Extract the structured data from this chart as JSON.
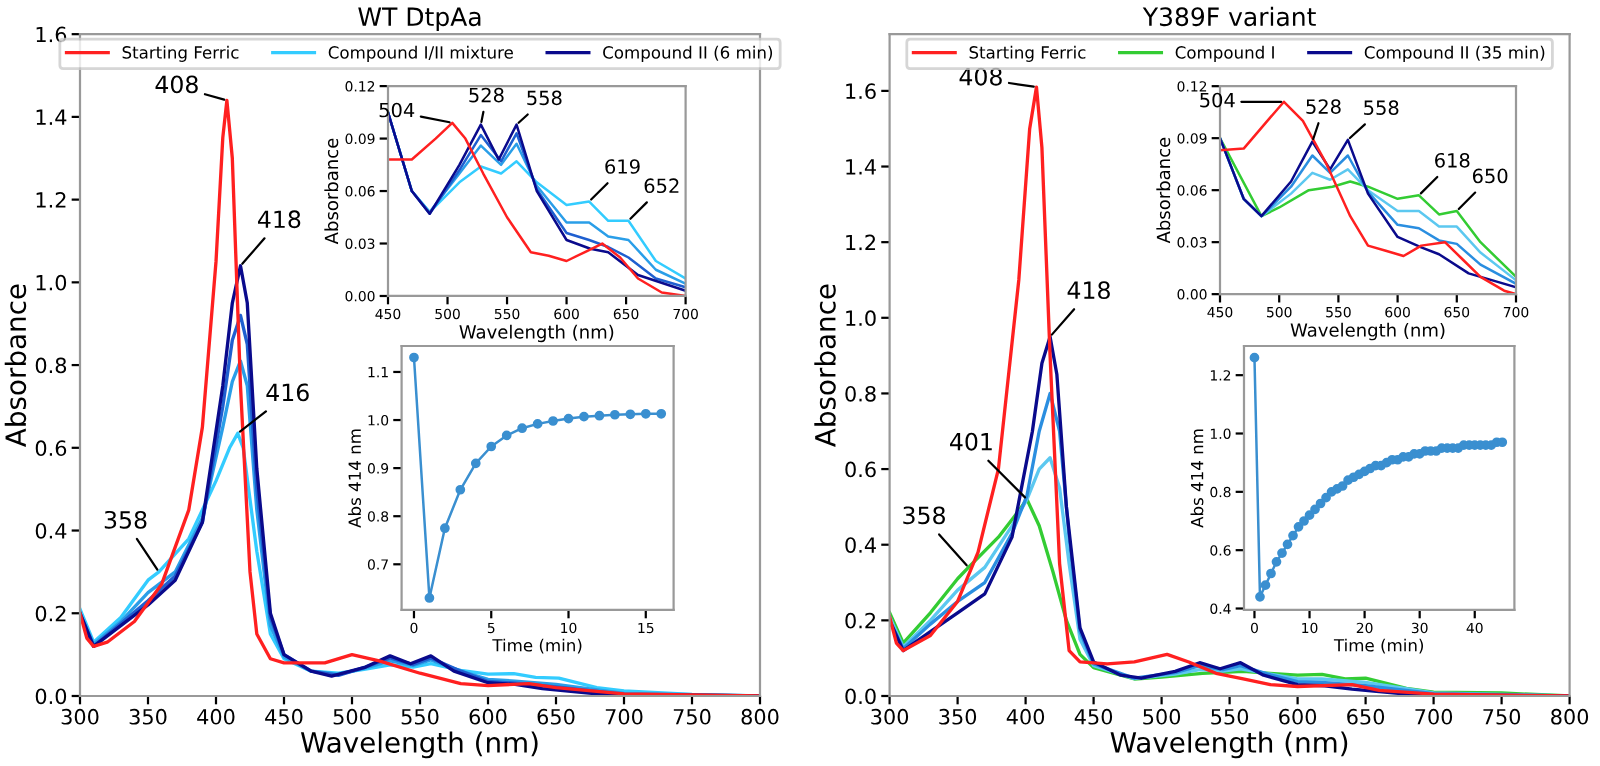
{
  "chart_data": [
    {
      "type": "line",
      "title": "WT DtpAa",
      "xlabel": "Wavelength (nm)",
      "ylabel": "Absorbance",
      "xlim": [
        300,
        800
      ],
      "ylim": [
        0,
        1.6
      ],
      "xticks": [
        300,
        350,
        400,
        450,
        500,
        550,
        600,
        650,
        700,
        750,
        800
      ],
      "yticks": [
        {
          "value": 0,
          "label": "0.0"
        },
        0.2,
        0.4,
        0.6,
        0.8,
        {
          "value": 1,
          "label": "1.0"
        },
        1.2,
        1.4,
        1.6
      ],
      "legend": "top",
      "grid": false,
      "series": [
        {
          "name": "Starting Ferric",
          "color": "#ff2020",
          "x": [
            300,
            305,
            310,
            320,
            340,
            360,
            380,
            390,
            400,
            405,
            408,
            412,
            418,
            425,
            430,
            440,
            450,
            480,
            500,
            520,
            550,
            580,
            600,
            630,
            650,
            700,
            800
          ],
          "values": [
            0.2,
            0.14,
            0.12,
            0.13,
            0.18,
            0.27,
            0.45,
            0.65,
            1.05,
            1.35,
            1.44,
            1.3,
            0.75,
            0.3,
            0.15,
            0.09,
            0.08,
            0.08,
            0.1,
            0.085,
            0.055,
            0.03,
            0.025,
            0.03,
            0.02,
            0.005,
            0
          ]
        },
        {
          "name": "Compound I/II mixture",
          "color": "#33ccff",
          "x": [
            300,
            310,
            330,
            350,
            358,
            380,
            400,
            410,
            416,
            420,
            430,
            440,
            450,
            470,
            490,
            510,
            528,
            545,
            558,
            580,
            600,
            619,
            635,
            652,
            680,
            700,
            750,
            800
          ],
          "values": [
            0.21,
            0.13,
            0.19,
            0.28,
            0.3,
            0.38,
            0.52,
            0.6,
            0.635,
            0.6,
            0.35,
            0.15,
            0.09,
            0.06,
            0.055,
            0.065,
            0.075,
            0.07,
            0.078,
            0.062,
            0.053,
            0.054,
            0.045,
            0.043,
            0.02,
            0.012,
            0.004,
            0
          ]
        },
        {
          "color": "#2a9ee8",
          "x": [
            300,
            310,
            330,
            350,
            370,
            390,
            405,
            412,
            418,
            423,
            430,
            440,
            450,
            470,
            490,
            510,
            528,
            545,
            558,
            580,
            600,
            620,
            650,
            700,
            800
          ],
          "values": [
            0.2,
            0.125,
            0.18,
            0.25,
            0.3,
            0.43,
            0.65,
            0.76,
            0.81,
            0.75,
            0.45,
            0.17,
            0.095,
            0.06,
            0.052,
            0.068,
            0.085,
            0.074,
            0.087,
            0.06,
            0.04,
            0.036,
            0.028,
            0.006,
            0
          ]
        },
        {
          "color": "#1f5fd0",
          "x": [
            300,
            310,
            330,
            350,
            370,
            390,
            405,
            412,
            418,
            423,
            430,
            440,
            450,
            470,
            490,
            510,
            528,
            545,
            558,
            580,
            600,
            620,
            650,
            700,
            800
          ],
          "values": [
            0.2,
            0.12,
            0.175,
            0.23,
            0.29,
            0.42,
            0.7,
            0.86,
            0.92,
            0.85,
            0.5,
            0.19,
            0.1,
            0.06,
            0.05,
            0.07,
            0.092,
            0.076,
            0.092,
            0.06,
            0.035,
            0.031,
            0.022,
            0.004,
            0
          ]
        },
        {
          "name": "Compound II (6 min)",
          "color": "#0a0a8c",
          "x": [
            300,
            310,
            330,
            350,
            370,
            390,
            405,
            412,
            418,
            423,
            430,
            440,
            450,
            470,
            485,
            510,
            528,
            543,
            558,
            575,
            600,
            620,
            640,
            680,
            700,
            800
          ],
          "values": [
            0.2,
            0.12,
            0.17,
            0.22,
            0.28,
            0.42,
            0.75,
            0.95,
            1.04,
            0.95,
            0.55,
            0.2,
            0.1,
            0.06,
            0.048,
            0.07,
            0.097,
            0.078,
            0.097,
            0.06,
            0.032,
            0.028,
            0.018,
            0.005,
            0.003,
            0
          ]
        }
      ],
      "annotations": [
        {
          "text": "408",
          "x": 408,
          "y": 1.44
        },
        {
          "text": "418",
          "x": 418,
          "y": 1.04
        },
        {
          "text": "416",
          "x": 416,
          "y": 0.635
        },
        {
          "text": "358",
          "x": 358,
          "y": 0.3
        }
      ]
    },
    {
      "type": "line",
      "xlabel": "Wavelength (nm)",
      "ylabel": "Absorbance",
      "xlim": [
        450,
        700
      ],
      "ylim": [
        0,
        0.12
      ],
      "xticks": [
        450,
        500,
        550,
        600,
        650,
        700
      ],
      "yticks": [
        {
          "value": 0,
          "label": "0.00"
        },
        {
          "value": 0.03,
          "label": "0.03"
        },
        {
          "value": 0.06,
          "label": "0.06"
        },
        {
          "value": 0.09,
          "label": "0.09"
        },
        {
          "value": 0.12,
          "label": "0.12"
        }
      ],
      "grid": false,
      "series": [
        {
          "color": "#ff2020",
          "x": [
            450,
            470,
            490,
            504,
            515,
            530,
            550,
            570,
            585,
            600,
            615,
            630,
            645,
            660,
            680,
            700
          ],
          "values": [
            0.078,
            0.078,
            0.09,
            0.099,
            0.09,
            0.07,
            0.045,
            0.025,
            0.023,
            0.02,
            0.025,
            0.03,
            0.022,
            0.01,
            0.002,
            0
          ]
        },
        {
          "color": "#33ccff",
          "x": [
            450,
            470,
            485,
            510,
            528,
            545,
            558,
            575,
            600,
            619,
            635,
            652,
            675,
            700
          ],
          "values": [
            0.105,
            0.06,
            0.048,
            0.065,
            0.074,
            0.07,
            0.077,
            0.065,
            0.052,
            0.054,
            0.043,
            0.043,
            0.02,
            0.01
          ]
        },
        {
          "color": "#2a9ee8",
          "x": [
            450,
            470,
            485,
            510,
            528,
            545,
            558,
            575,
            600,
            619,
            635,
            652,
            675,
            700
          ],
          "values": [
            0.105,
            0.06,
            0.048,
            0.07,
            0.086,
            0.075,
            0.087,
            0.063,
            0.042,
            0.042,
            0.034,
            0.032,
            0.015,
            0.007
          ]
        },
        {
          "color": "#1f5fd0",
          "x": [
            450,
            470,
            485,
            510,
            528,
            545,
            558,
            575,
            600,
            619,
            635,
            652,
            675,
            700
          ],
          "values": [
            0.105,
            0.06,
            0.047,
            0.072,
            0.092,
            0.077,
            0.093,
            0.061,
            0.036,
            0.032,
            0.028,
            0.022,
            0.01,
            0.005
          ]
        },
        {
          "color": "#0a0a8c",
          "x": [
            450,
            470,
            485,
            510,
            528,
            543,
            558,
            575,
            600,
            620,
            635,
            660,
            700
          ],
          "values": [
            0.105,
            0.06,
            0.047,
            0.075,
            0.098,
            0.078,
            0.098,
            0.06,
            0.032,
            0.027,
            0.025,
            0.012,
            0.003
          ]
        }
      ],
      "annotations": [
        {
          "text": "504",
          "x": 504,
          "y": 0.099
        },
        {
          "text": "528",
          "x": 528,
          "y": 0.098
        },
        {
          "text": "558",
          "x": 558,
          "y": 0.098
        },
        {
          "text": "619",
          "x": 619,
          "y": 0.054
        },
        {
          "text": "652",
          "x": 652,
          "y": 0.043
        }
      ]
    },
    {
      "type": "line",
      "xlabel": "Time (min)",
      "ylabel": "Abs 414 nm",
      "xlim": [
        -0.8,
        16.8
      ],
      "ylim": [
        0.605,
        1.154
      ],
      "xticks": [
        0,
        5,
        10,
        15
      ],
      "yticks": [
        0.7,
        0.8,
        0.9,
        {
          "value": 1,
          "label": "1.0"
        },
        1.1
      ],
      "grid": false,
      "marker": "circle",
      "series": [
        {
          "color": "#3a8fd0",
          "x": [
            0,
            1,
            2,
            3,
            4,
            5,
            6,
            7,
            8,
            9,
            10,
            11,
            12,
            13,
            14,
            15,
            16
          ],
          "values": [
            1.13,
            0.63,
            0.775,
            0.855,
            0.91,
            0.945,
            0.968,
            0.983,
            0.992,
            0.998,
            1.003,
            1.007,
            1.009,
            1.011,
            1.012,
            1.013,
            1.013
          ]
        }
      ]
    },
    {
      "type": "line",
      "title": "Y389F variant",
      "xlabel": "Wavelength (nm)",
      "ylabel": "Absorbance",
      "xlim": [
        300,
        800
      ],
      "ylim": [
        0,
        1.75
      ],
      "xticks": [
        300,
        350,
        400,
        450,
        500,
        550,
        600,
        650,
        700,
        750,
        800
      ],
      "yticks": [
        {
          "value": 0,
          "label": "0.0"
        },
        0.2,
        0.4,
        0.6,
        0.8,
        {
          "value": 1,
          "label": "1.0"
        },
        1.2,
        1.4,
        1.6
      ],
      "legend": "top",
      "grid": false,
      "series": [
        {
          "name": "Starting Ferric",
          "color": "#ff2020",
          "x": [
            300,
            305,
            310,
            330,
            350,
            365,
            380,
            395,
            403,
            408,
            412,
            418,
            425,
            432,
            440,
            460,
            480,
            504,
            520,
            540,
            560,
            580,
            600,
            640,
            660,
            700,
            800
          ],
          "values": [
            0.21,
            0.14,
            0.12,
            0.16,
            0.25,
            0.38,
            0.6,
            1.1,
            1.5,
            1.61,
            1.45,
            0.9,
            0.35,
            0.12,
            0.09,
            0.085,
            0.09,
            0.11,
            0.09,
            0.06,
            0.045,
            0.03,
            0.025,
            0.03,
            0.015,
            0.005,
            0
          ]
        },
        {
          "name": "Compound I",
          "color": "#33cc33",
          "x": [
            300,
            310,
            330,
            350,
            358,
            380,
            395,
            401,
            410,
            420,
            430,
            440,
            450,
            480,
            500,
            530,
            560,
            580,
            600,
            618,
            635,
            650,
            680,
            700,
            750,
            800
          ],
          "values": [
            0.22,
            0.14,
            0.22,
            0.31,
            0.34,
            0.42,
            0.49,
            0.52,
            0.45,
            0.33,
            0.2,
            0.11,
            0.075,
            0.045,
            0.05,
            0.06,
            0.065,
            0.06,
            0.055,
            0.057,
            0.045,
            0.047,
            0.02,
            0.01,
            0.008,
            0
          ]
        },
        {
          "color": "#5cc8f0",
          "x": [
            300,
            310,
            330,
            350,
            370,
            390,
            401,
            410,
            418,
            425,
            432,
            440,
            450,
            480,
            510,
            528,
            545,
            558,
            580,
            600,
            618,
            650,
            700,
            800
          ],
          "values": [
            0.21,
            0.13,
            0.2,
            0.28,
            0.34,
            0.45,
            0.52,
            0.6,
            0.63,
            0.55,
            0.35,
            0.15,
            0.08,
            0.046,
            0.058,
            0.07,
            0.066,
            0.072,
            0.058,
            0.045,
            0.045,
            0.036,
            0.008,
            0
          ]
        },
        {
          "color": "#2a8ee0",
          "x": [
            300,
            310,
            330,
            350,
            370,
            390,
            401,
            410,
            418,
            425,
            432,
            440,
            450,
            480,
            510,
            528,
            545,
            558,
            580,
            600,
            618,
            650,
            700,
            800
          ],
          "values": [
            0.2,
            0.125,
            0.19,
            0.25,
            0.3,
            0.43,
            0.53,
            0.7,
            0.8,
            0.7,
            0.42,
            0.17,
            0.085,
            0.047,
            0.062,
            0.08,
            0.07,
            0.08,
            0.056,
            0.038,
            0.036,
            0.027,
            0.006,
            0
          ]
        },
        {
          "name": "Compound II (35 min)",
          "color": "#0a0a8c",
          "x": [
            300,
            310,
            330,
            350,
            370,
            390,
            405,
            412,
            418,
            423,
            430,
            440,
            450,
            470,
            485,
            510,
            528,
            543,
            558,
            575,
            600,
            620,
            640,
            680,
            700,
            800
          ],
          "values": [
            0.2,
            0.12,
            0.17,
            0.22,
            0.27,
            0.42,
            0.7,
            0.88,
            0.95,
            0.85,
            0.5,
            0.18,
            0.09,
            0.055,
            0.047,
            0.065,
            0.088,
            0.072,
            0.088,
            0.055,
            0.03,
            0.027,
            0.018,
            0.005,
            0.003,
            0
          ]
        }
      ],
      "annotations": [
        {
          "text": "408",
          "x": 408,
          "y": 1.61
        },
        {
          "text": "418",
          "x": 418,
          "y": 0.95
        },
        {
          "text": "401",
          "x": 401,
          "y": 0.52
        },
        {
          "text": "358",
          "x": 358,
          "y": 0.34
        }
      ]
    },
    {
      "type": "line",
      "xlabel": "Wavelength (nm)",
      "ylabel": "Absorbance",
      "xlim": [
        450,
        700
      ],
      "ylim": [
        0,
        0.12
      ],
      "xticks": [
        450,
        500,
        550,
        600,
        650,
        700
      ],
      "yticks": [
        {
          "value": 0,
          "label": "0.00"
        },
        {
          "value": 0.03,
          "label": "0.03"
        },
        {
          "value": 0.06,
          "label": "0.06"
        },
        {
          "value": 0.09,
          "label": "0.09"
        },
        {
          "value": 0.12,
          "label": "0.12"
        }
      ],
      "grid": false,
      "series": [
        {
          "color": "#ff2020",
          "x": [
            450,
            470,
            490,
            504,
            520,
            540,
            560,
            575,
            590,
            605,
            620,
            640,
            655,
            670,
            690,
            700
          ],
          "values": [
            0.083,
            0.084,
            0.1,
            0.111,
            0.1,
            0.075,
            0.045,
            0.028,
            0.025,
            0.022,
            0.028,
            0.03,
            0.02,
            0.01,
            0.002,
            0
          ]
        },
        {
          "color": "#33cc33",
          "x": [
            450,
            485,
            500,
            525,
            545,
            560,
            575,
            600,
            618,
            635,
            650,
            670,
            700
          ],
          "values": [
            0.09,
            0.045,
            0.05,
            0.06,
            0.062,
            0.065,
            0.062,
            0.055,
            0.057,
            0.046,
            0.048,
            0.03,
            0.01
          ]
        },
        {
          "color": "#5cc8f0",
          "x": [
            450,
            470,
            485,
            510,
            528,
            543,
            558,
            575,
            600,
            618,
            635,
            650,
            670,
            700
          ],
          "values": [
            0.09,
            0.055,
            0.045,
            0.058,
            0.07,
            0.066,
            0.072,
            0.06,
            0.048,
            0.048,
            0.039,
            0.039,
            0.024,
            0.008
          ]
        },
        {
          "color": "#2a8ee0",
          "x": [
            450,
            470,
            485,
            510,
            528,
            543,
            558,
            575,
            600,
            618,
            635,
            650,
            670,
            700
          ],
          "values": [
            0.09,
            0.055,
            0.045,
            0.062,
            0.08,
            0.07,
            0.08,
            0.059,
            0.04,
            0.038,
            0.031,
            0.029,
            0.017,
            0.006
          ]
        },
        {
          "color": "#0a0a8c",
          "x": [
            450,
            470,
            485,
            510,
            528,
            543,
            558,
            575,
            600,
            620,
            635,
            660,
            700
          ],
          "values": [
            0.09,
            0.055,
            0.045,
            0.065,
            0.088,
            0.072,
            0.089,
            0.058,
            0.033,
            0.027,
            0.023,
            0.012,
            0.004
          ]
        }
      ],
      "annotations": [
        {
          "text": "504",
          "x": 504,
          "y": 0.111
        },
        {
          "text": "528",
          "x": 528,
          "y": 0.088
        },
        {
          "text": "558",
          "x": 558,
          "y": 0.089
        },
        {
          "text": "618",
          "x": 618,
          "y": 0.057
        },
        {
          "text": "650",
          "x": 650,
          "y": 0.048
        }
      ]
    },
    {
      "type": "line",
      "xlabel": "Time (min)",
      "ylabel": "Abs 414 nm",
      "xlim": [
        -1.9,
        47.2
      ],
      "ylim": [
        0.395,
        1.3
      ],
      "xticks": [
        0,
        10,
        20,
        30,
        40
      ],
      "yticks": [
        0.4,
        0.6,
        0.8,
        {
          "value": 1,
          "label": "1.0"
        },
        1.2
      ],
      "grid": false,
      "marker": "circle",
      "series": [
        {
          "color": "#3a8fd0",
          "x": [
            0,
            1,
            2,
            3,
            4,
            5,
            6,
            7,
            8,
            9,
            10,
            11,
            12,
            13,
            14,
            15,
            16,
            17,
            18,
            19,
            20,
            21,
            22,
            23,
            24,
            25,
            26,
            27,
            28,
            29,
            30,
            31,
            32,
            33,
            34,
            35,
            36,
            37,
            38,
            39,
            40,
            41,
            42,
            43,
            44,
            45
          ],
          "values": [
            1.26,
            0.44,
            0.48,
            0.52,
            0.56,
            0.59,
            0.62,
            0.65,
            0.68,
            0.7,
            0.72,
            0.74,
            0.76,
            0.78,
            0.8,
            0.81,
            0.82,
            0.84,
            0.85,
            0.86,
            0.87,
            0.88,
            0.89,
            0.89,
            0.9,
            0.91,
            0.91,
            0.92,
            0.92,
            0.93,
            0.93,
            0.94,
            0.94,
            0.94,
            0.95,
            0.95,
            0.95,
            0.95,
            0.96,
            0.96,
            0.96,
            0.96,
            0.96,
            0.96,
            0.97,
            0.97
          ]
        }
      ]
    }
  ]
}
